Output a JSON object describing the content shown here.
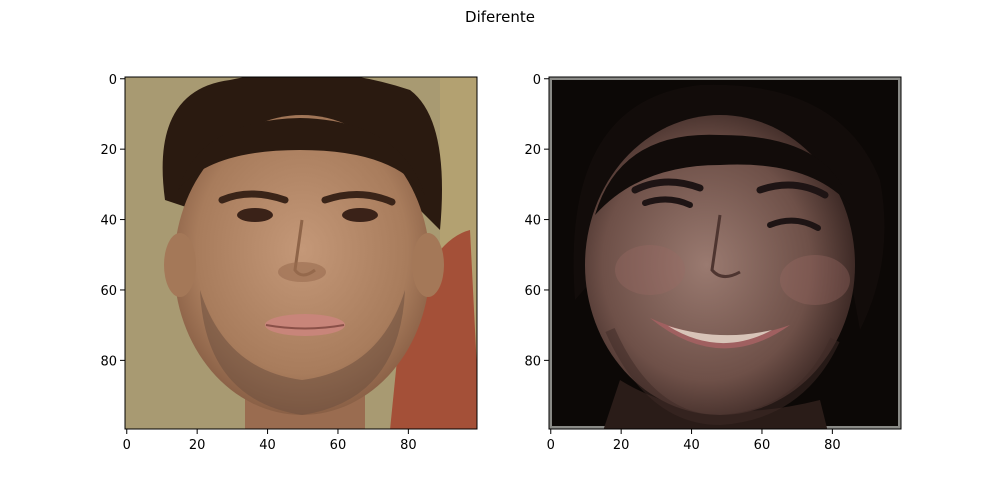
{
  "figure": {
    "title": "Diferente"
  },
  "panels": [
    {
      "name": "left",
      "image_size": 100,
      "xticks": [
        0,
        20,
        40,
        60,
        80
      ],
      "yticks": [
        0,
        20,
        40,
        60,
        80
      ],
      "background_color": "#a89a72",
      "hair_color": "#2a1a10",
      "skin_color": "#b58a6a",
      "skin_shadow": "#8e6448",
      "lip_color": "#c8857a",
      "beard_color": "#6e5040",
      "eye_color": "#3a2218",
      "shoulder_color": "#a45038"
    },
    {
      "name": "right",
      "image_size": 100,
      "xticks": [
        0,
        20,
        40,
        60,
        80
      ],
      "yticks": [
        0,
        20,
        40,
        60,
        80
      ],
      "background_color": "#0c0806",
      "hair_color": "#120c0a",
      "skin_color": "#806058",
      "skin_shadow": "#4e3530",
      "lip_color": "#a06060",
      "teeth_color": "#d8c4b8",
      "eye_color": "#1e1414",
      "border_color": "#8a8a86"
    }
  ]
}
